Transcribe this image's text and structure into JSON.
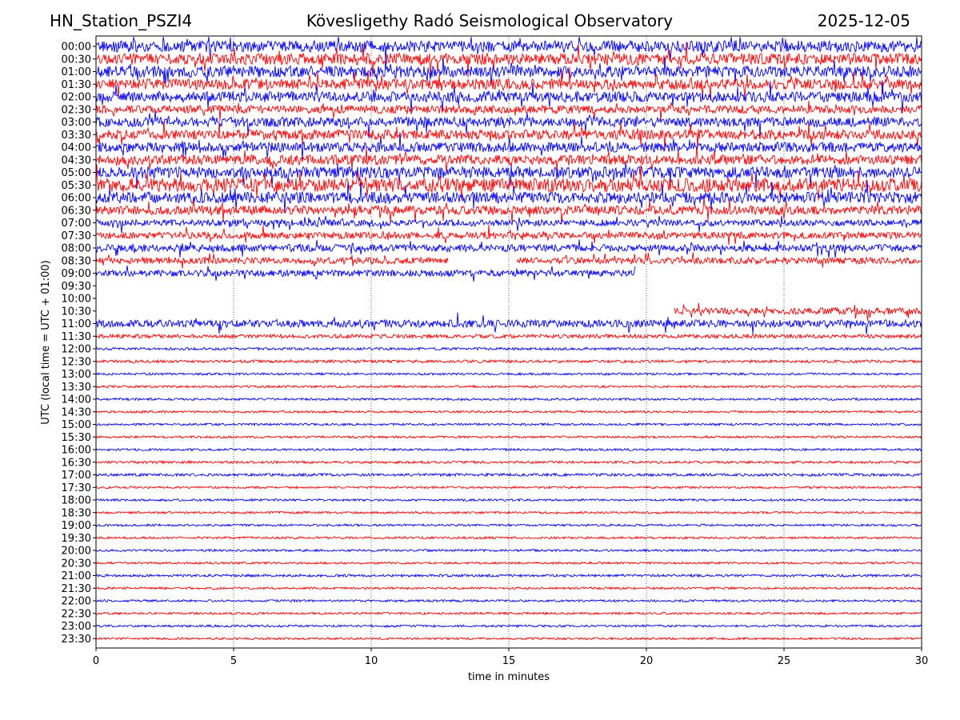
{
  "header": {
    "station": "HN_Station_PSZI4",
    "observatory": "Kövesligethy Radó Seismological Observatory",
    "date": "2025-12-05"
  },
  "chart_data": {
    "type": "line",
    "title": "Kövesligethy Radó Seismological Observatory",
    "xlabel": "time in minutes",
    "ylabel": "UTC (local time = UTC + 01:00)",
    "xlim": [
      0,
      30
    ],
    "x_ticks": [
      0,
      5,
      10,
      15,
      20,
      25,
      30
    ],
    "grid": "vertical dotted lines at 5-minute intervals",
    "colors": {
      "even_rows": "#0000ff",
      "odd_rows": "#ff0000"
    },
    "rows": [
      {
        "label": "00:00",
        "color": "#0000ff",
        "activity": 0.65,
        "segments": [
          [
            0,
            30
          ]
        ]
      },
      {
        "label": "00:30",
        "color": "#ff0000",
        "activity": 0.65,
        "segments": [
          [
            0,
            30
          ]
        ]
      },
      {
        "label": "01:00",
        "color": "#0000ff",
        "activity": 0.65,
        "segments": [
          [
            0,
            30
          ]
        ]
      },
      {
        "label": "01:30",
        "color": "#ff0000",
        "activity": 0.6,
        "segments": [
          [
            0,
            30
          ]
        ]
      },
      {
        "label": "02:00",
        "color": "#0000ff",
        "activity": 0.6,
        "segments": [
          [
            0,
            30
          ]
        ]
      },
      {
        "label": "02:30",
        "color": "#ff0000",
        "activity": 0.45,
        "segments": [
          [
            0,
            30
          ]
        ]
      },
      {
        "label": "03:00",
        "color": "#0000ff",
        "activity": 0.55,
        "segments": [
          [
            0,
            30
          ]
        ]
      },
      {
        "label": "03:30",
        "color": "#ff0000",
        "activity": 0.55,
        "segments": [
          [
            0,
            30
          ]
        ]
      },
      {
        "label": "04:00",
        "color": "#0000ff",
        "activity": 0.55,
        "segments": [
          [
            0,
            30
          ]
        ]
      },
      {
        "label": "04:30",
        "color": "#ff0000",
        "activity": 0.55,
        "segments": [
          [
            0,
            30
          ]
        ]
      },
      {
        "label": "05:00",
        "color": "#0000ff",
        "activity": 0.65,
        "segments": [
          [
            0,
            30
          ]
        ]
      },
      {
        "label": "05:30",
        "color": "#ff0000",
        "activity": 0.8,
        "segments": [
          [
            0,
            30
          ]
        ]
      },
      {
        "label": "06:00",
        "color": "#0000ff",
        "activity": 0.65,
        "segments": [
          [
            0,
            30
          ]
        ]
      },
      {
        "label": "06:30",
        "color": "#ff0000",
        "activity": 0.5,
        "segments": [
          [
            0,
            30
          ]
        ]
      },
      {
        "label": "07:00",
        "color": "#0000ff",
        "activity": 0.35,
        "segments": [
          [
            0,
            30
          ]
        ]
      },
      {
        "label": "07:30",
        "color": "#ff0000",
        "activity": 0.35,
        "segments": [
          [
            0,
            30
          ]
        ]
      },
      {
        "label": "08:00",
        "color": "#0000ff",
        "activity": 0.4,
        "segments": [
          [
            0,
            30
          ]
        ]
      },
      {
        "label": "08:30",
        "color": "#ff0000",
        "activity": 0.35,
        "segments": [
          [
            0,
            12.8
          ],
          [
            15.3,
            30
          ]
        ]
      },
      {
        "label": "09:00",
        "color": "#0000ff",
        "activity": 0.35,
        "segments": [
          [
            0,
            19.6
          ]
        ]
      },
      {
        "label": "09:30",
        "color": "#ff0000",
        "activity": 0,
        "segments": []
      },
      {
        "label": "10:00",
        "color": "#0000ff",
        "activity": 0,
        "segments": []
      },
      {
        "label": "10:30",
        "color": "#ff0000",
        "activity": 0.35,
        "segments": [
          [
            21,
            30
          ]
        ]
      },
      {
        "label": "11:00",
        "color": "#0000ff",
        "activity": 0.4,
        "segments": [
          [
            0,
            30
          ]
        ]
      },
      {
        "label": "11:30",
        "color": "#ff0000",
        "activity": 0.18,
        "segments": [
          [
            0,
            30
          ]
        ]
      },
      {
        "label": "12:00",
        "color": "#0000ff",
        "activity": 0.1,
        "segments": [
          [
            0,
            30
          ]
        ]
      },
      {
        "label": "12:30",
        "color": "#ff0000",
        "activity": 0.12,
        "segments": [
          [
            0,
            30
          ]
        ]
      },
      {
        "label": "13:00",
        "color": "#0000ff",
        "activity": 0.08,
        "segments": [
          [
            0,
            30
          ]
        ]
      },
      {
        "label": "13:30",
        "color": "#ff0000",
        "activity": 0.08,
        "segments": [
          [
            0,
            30
          ]
        ]
      },
      {
        "label": "14:00",
        "color": "#0000ff",
        "activity": 0.08,
        "segments": [
          [
            0,
            30
          ]
        ]
      },
      {
        "label": "14:30",
        "color": "#ff0000",
        "activity": 0.08,
        "segments": [
          [
            0,
            30
          ]
        ]
      },
      {
        "label": "15:00",
        "color": "#0000ff",
        "activity": 0.08,
        "segments": [
          [
            0,
            30
          ]
        ]
      },
      {
        "label": "15:30",
        "color": "#ff0000",
        "activity": 0.08,
        "segments": [
          [
            0,
            30
          ]
        ]
      },
      {
        "label": "16:00",
        "color": "#0000ff",
        "activity": 0.08,
        "segments": [
          [
            0,
            30
          ]
        ]
      },
      {
        "label": "16:30",
        "color": "#ff0000",
        "activity": 0.1,
        "segments": [
          [
            0,
            30
          ]
        ]
      },
      {
        "label": "17:00",
        "color": "#0000ff",
        "activity": 0.12,
        "segments": [
          [
            0,
            30
          ]
        ]
      },
      {
        "label": "17:30",
        "color": "#ff0000",
        "activity": 0.08,
        "segments": [
          [
            0,
            30
          ]
        ]
      },
      {
        "label": "18:00",
        "color": "#0000ff",
        "activity": 0.08,
        "segments": [
          [
            0,
            30
          ]
        ]
      },
      {
        "label": "18:30",
        "color": "#ff0000",
        "activity": 0.08,
        "segments": [
          [
            0,
            30
          ]
        ]
      },
      {
        "label": "19:00",
        "color": "#0000ff",
        "activity": 0.08,
        "segments": [
          [
            0,
            30
          ]
        ]
      },
      {
        "label": "19:30",
        "color": "#ff0000",
        "activity": 0.08,
        "segments": [
          [
            0,
            30
          ]
        ]
      },
      {
        "label": "20:00",
        "color": "#0000ff",
        "activity": 0.08,
        "segments": [
          [
            0,
            30
          ]
        ]
      },
      {
        "label": "20:30",
        "color": "#ff0000",
        "activity": 0.08,
        "segments": [
          [
            0,
            30
          ]
        ]
      },
      {
        "label": "21:00",
        "color": "#0000ff",
        "activity": 0.1,
        "segments": [
          [
            0,
            30
          ]
        ]
      },
      {
        "label": "21:30",
        "color": "#ff0000",
        "activity": 0.08,
        "segments": [
          [
            0,
            30
          ]
        ]
      },
      {
        "label": "22:00",
        "color": "#0000ff",
        "activity": 0.08,
        "segments": [
          [
            0,
            30
          ]
        ]
      },
      {
        "label": "22:30",
        "color": "#ff0000",
        "activity": 0.08,
        "segments": [
          [
            0,
            30
          ]
        ]
      },
      {
        "label": "23:00",
        "color": "#0000ff",
        "activity": 0.08,
        "segments": [
          [
            0,
            30
          ]
        ]
      },
      {
        "label": "23:30",
        "color": "#ff0000",
        "activity": 0.08,
        "segments": [
          [
            0,
            30
          ]
        ]
      }
    ]
  }
}
